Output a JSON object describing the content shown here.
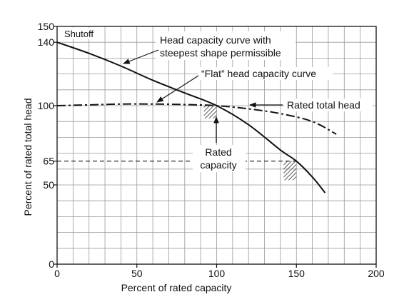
{
  "chart_data": {
    "type": "line",
    "title": "",
    "xlabel": "Percent of rated capacity",
    "ylabel": "Percent of rated total head",
    "xlim": [
      0,
      200
    ],
    "ylim": [
      0,
      150
    ],
    "grid": true,
    "x_ticks": [
      0,
      50,
      100,
      150,
      200
    ],
    "y_ticks": [
      0,
      50,
      65,
      100,
      140,
      150
    ],
    "series": [
      {
        "name": "Head capacity curve with steepest shape permissible",
        "style": "solid",
        "x": [
          0,
          20,
          40,
          60,
          80,
          100,
          120,
          140,
          150,
          160,
          168
        ],
        "y": [
          140,
          133,
          125,
          116,
          108,
          100,
          88,
          72,
          65,
          55,
          45
        ]
      },
      {
        "name": "“Flat” head capacity curve",
        "style": "dash-dot",
        "x": [
          0,
          20,
          40,
          60,
          80,
          100,
          120,
          140,
          160,
          175
        ],
        "y": [
          100,
          100.5,
          101,
          101,
          100.7,
          100,
          98,
          95,
          90,
          82
        ]
      }
    ],
    "reference_lines": {
      "rated_capacity_line": {
        "x": [
          0,
          150
        ],
        "y": 65
      }
    },
    "hatch_regions": [
      {
        "x": [
          92,
          100
        ],
        "y": [
          92,
          100
        ]
      },
      {
        "x": [
          142,
          150
        ],
        "y": [
          53,
          65
        ]
      }
    ],
    "annotations": {
      "shutoff": "Shutoff",
      "steep_curve_line1": "Head capacity curve with",
      "steep_curve_line2": "steepest shape permissible",
      "flat_curve": "“Flat” head capacity curve",
      "rated_total_head": "Rated total head",
      "rated_capacity_line1": "Rated",
      "rated_capacity_line2": "capacity"
    }
  }
}
